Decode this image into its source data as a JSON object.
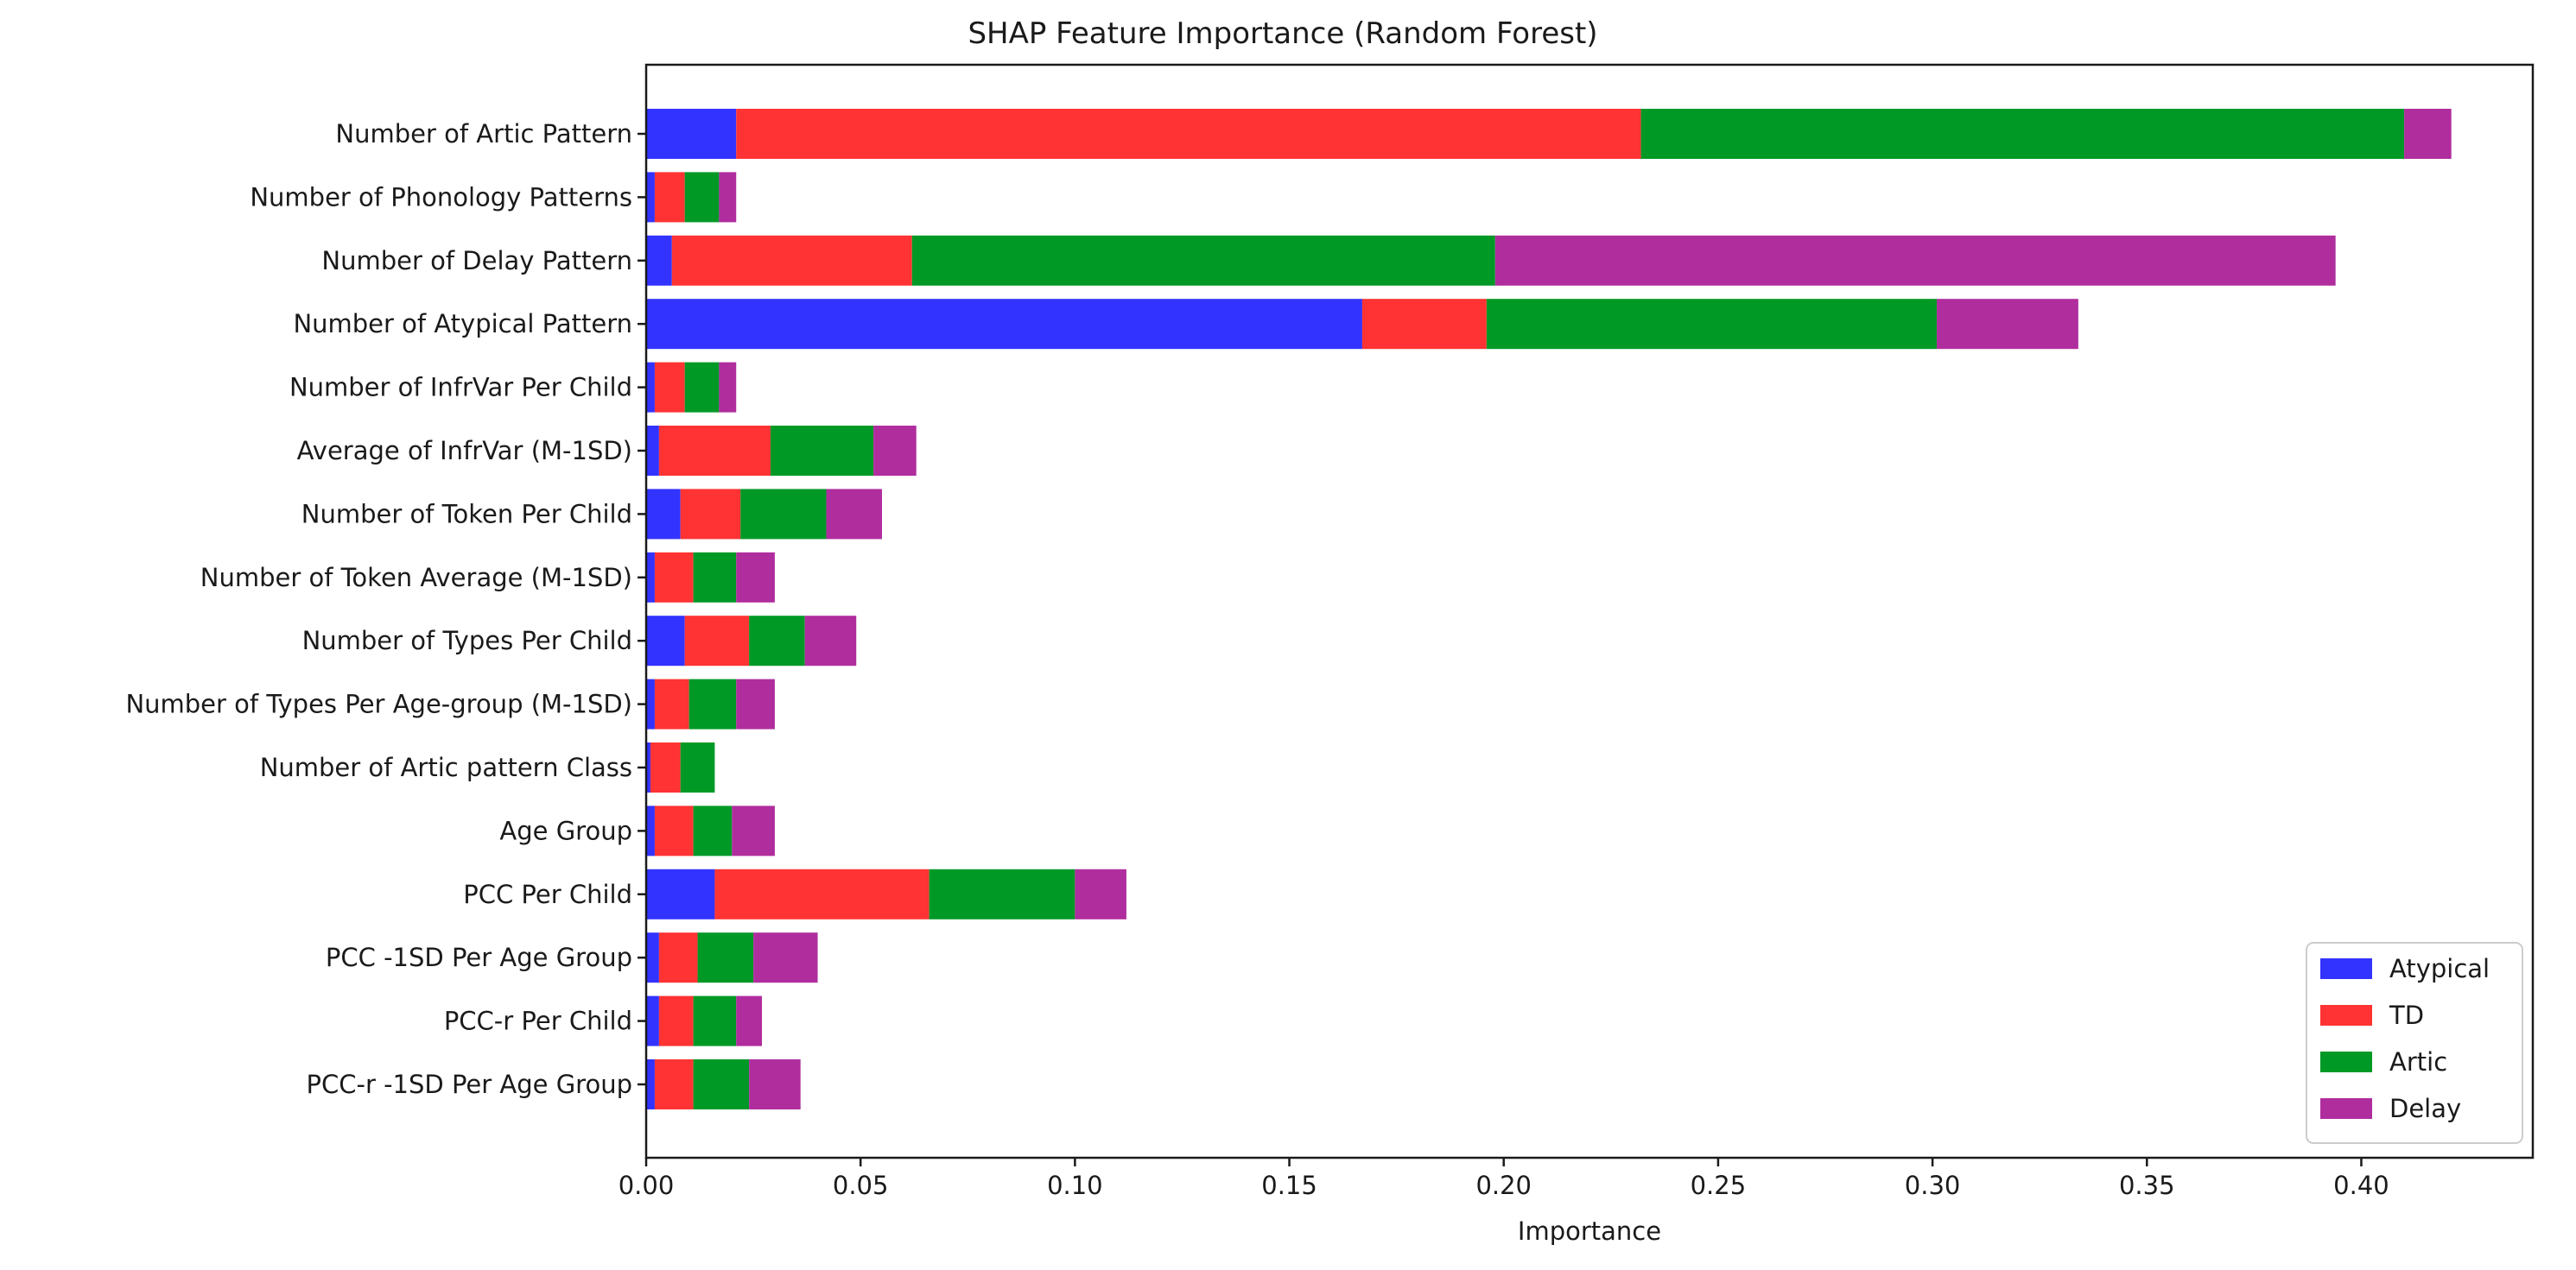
{
  "chart_data": {
    "type": "bar",
    "orientation": "horizontal",
    "stacked": true,
    "title": "SHAP Feature Importance (Random Forest)",
    "xlabel": "Importance",
    "ylabel": "",
    "xlim": [
      0.0,
      0.44
    ],
    "xticks": [
      0.0,
      0.05,
      0.1,
      0.15,
      0.2,
      0.25,
      0.3,
      0.35,
      0.4
    ],
    "xtick_labels": [
      "0.00",
      "0.05",
      "0.10",
      "0.15",
      "0.20",
      "0.25",
      "0.30",
      "0.35",
      "0.40"
    ],
    "grid": false,
    "legend_position": "bottom-right",
    "categories": [
      "Number of Artic Pattern",
      "Number of Phonology Patterns",
      "Number of Delay Pattern",
      "Number of Atypical Pattern",
      "Number of InfrVar Per Child",
      "Average of InfrVar (M-1SD)",
      "Number of Token Per Child",
      "Number of Token Average (M-1SD)",
      "Number of Types Per Child",
      "Number of Types Per Age-group (M-1SD)",
      "Number of Artic pattern Class",
      "Age Group",
      "PCC Per Child",
      "PCC -1SD Per Age Group",
      "PCC-r Per Child",
      "PCC-r -1SD Per Age Group"
    ],
    "series": [
      {
        "name": "Atypical",
        "color": "#3333ff",
        "values": [
          0.021,
          0.002,
          0.006,
          0.167,
          0.002,
          0.003,
          0.008,
          0.002,
          0.009,
          0.002,
          0.001,
          0.002,
          0.016,
          0.003,
          0.003,
          0.002
        ]
      },
      {
        "name": "TD",
        "color": "#ff3333",
        "values": [
          0.211,
          0.007,
          0.056,
          0.029,
          0.007,
          0.026,
          0.014,
          0.009,
          0.015,
          0.008,
          0.007,
          0.009,
          0.05,
          0.009,
          0.008,
          0.009
        ]
      },
      {
        "name": "Artic",
        "color": "#009926",
        "values": [
          0.178,
          0.008,
          0.136,
          0.105,
          0.008,
          0.024,
          0.02,
          0.01,
          0.013,
          0.011,
          0.008,
          0.009,
          0.034,
          0.013,
          0.01,
          0.013
        ]
      },
      {
        "name": "Delay",
        "color": "#b02d9e",
        "values": [
          0.011,
          0.004,
          0.196,
          0.033,
          0.004,
          0.01,
          0.013,
          0.009,
          0.012,
          0.009,
          0.0,
          0.01,
          0.012,
          0.015,
          0.006,
          0.012
        ]
      }
    ]
  }
}
